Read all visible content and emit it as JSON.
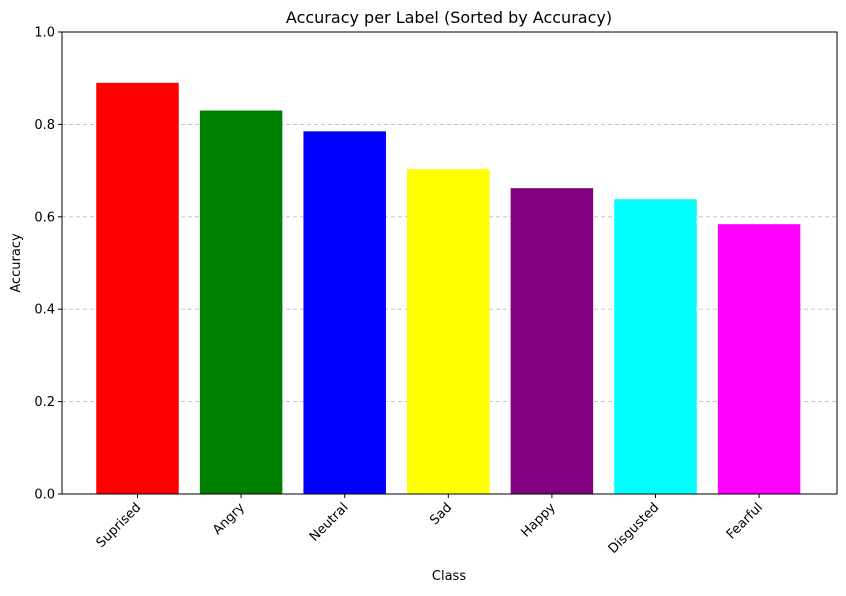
{
  "chart_data": {
    "type": "bar",
    "title": "Accuracy per Label (Sorted by Accuracy)",
    "xlabel": "Class",
    "ylabel": "Accuracy",
    "categories": [
      "Suprised",
      "Angry",
      "Neutral",
      "Sad",
      "Happy",
      "Disgusted",
      "Fearful"
    ],
    "values": [
      0.89,
      0.83,
      0.785,
      0.703,
      0.662,
      0.638,
      0.584
    ],
    "colors": [
      "#ff0000",
      "#008000",
      "#0000ff",
      "#ffff00",
      "#800080",
      "#00ffff",
      "#ff00ff"
    ],
    "ylim": [
      0,
      1.0
    ],
    "yticks": [
      "0.0",
      "0.2",
      "0.4",
      "0.6",
      "0.8",
      "1.0"
    ],
    "ytick_values": [
      0,
      0.2,
      0.4,
      0.6,
      0.8,
      1.0
    ],
    "grid": "y-axis dashed",
    "legend": "none"
  }
}
